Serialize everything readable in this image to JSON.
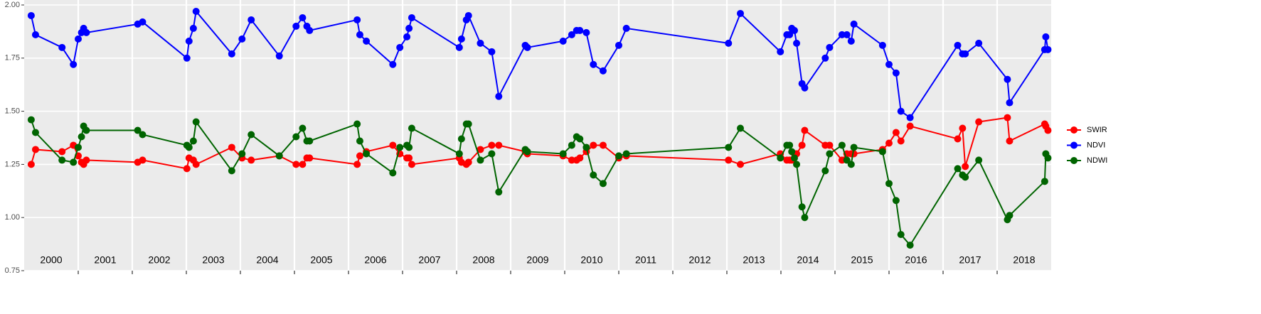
{
  "chart_data": {
    "type": "line",
    "x": [
      2000.13,
      2000.21,
      2000.7,
      2000.91,
      2001.0,
      2001.06,
      2001.1,
      2001.15,
      2002.1,
      2002.19,
      2003.01,
      2003.05,
      2003.13,
      2003.18,
      2003.84,
      2004.03,
      2004.2,
      2004.72,
      2005.03,
      2005.15,
      2005.23,
      2005.28,
      2006.16,
      2006.21,
      2006.33,
      2006.82,
      2006.95,
      2007.08,
      2007.12,
      2007.17,
      2008.05,
      2008.09,
      2008.18,
      2008.22,
      2008.44,
      2008.65,
      2008.78,
      2009.27,
      2009.31,
      2009.97,
      2010.13,
      2010.22,
      2010.28,
      2010.4,
      2010.53,
      2010.71,
      2011.0,
      2011.14,
      2013.03,
      2013.25,
      2013.99,
      2014.11,
      2014.16,
      2014.2,
      2014.25,
      2014.29,
      2014.39,
      2014.44,
      2014.82,
      2014.9,
      2015.13,
      2015.22,
      2015.3,
      2015.35,
      2015.88,
      2016.0,
      2016.13,
      2016.22,
      2016.39,
      2017.27,
      2017.36,
      2017.41,
      2017.66,
      2018.19,
      2018.23,
      2018.88,
      2018.9,
      2018.94
    ],
    "series": [
      {
        "name": "SWIR",
        "color": "#ff0000",
        "values": [
          1.25,
          1.32,
          1.31,
          1.34,
          1.29,
          1.26,
          1.25,
          1.27,
          1.26,
          1.27,
          1.23,
          1.28,
          1.27,
          1.25,
          1.33,
          1.28,
          1.27,
          1.29,
          1.25,
          1.25,
          1.28,
          1.28,
          1.25,
          1.29,
          1.31,
          1.34,
          1.3,
          1.28,
          1.28,
          1.25,
          1.28,
          1.26,
          1.25,
          1.26,
          1.32,
          1.34,
          1.34,
          1.31,
          1.3,
          1.29,
          1.27,
          1.27,
          1.28,
          1.31,
          1.34,
          1.34,
          1.28,
          1.29,
          1.27,
          1.25,
          1.3,
          1.27,
          1.27,
          1.27,
          1.3,
          1.3,
          1.34,
          1.41,
          1.34,
          1.34,
          1.27,
          1.3,
          1.3,
          1.3,
          1.32,
          1.35,
          1.4,
          1.36,
          1.43,
          1.37,
          1.42,
          1.24,
          1.45,
          1.47,
          1.36,
          1.44,
          1.43,
          1.41
        ]
      },
      {
        "name": "NDVI",
        "color": "#0000ff",
        "values": [
          1.95,
          1.86,
          1.8,
          1.72,
          1.84,
          1.87,
          1.89,
          1.87,
          1.91,
          1.92,
          1.75,
          1.83,
          1.89,
          1.97,
          1.77,
          1.84,
          1.93,
          1.76,
          1.9,
          1.94,
          1.9,
          1.88,
          1.93,
          1.86,
          1.83,
          1.72,
          1.8,
          1.85,
          1.89,
          1.94,
          1.8,
          1.84,
          1.93,
          1.95,
          1.82,
          1.78,
          1.57,
          1.81,
          1.8,
          1.83,
          1.86,
          1.88,
          1.88,
          1.87,
          1.72,
          1.69,
          1.81,
          1.89,
          1.82,
          1.96,
          1.78,
          1.86,
          1.86,
          1.89,
          1.88,
          1.82,
          1.63,
          1.61,
          1.75,
          1.8,
          1.86,
          1.86,
          1.83,
          1.91,
          1.81,
          1.72,
          1.68,
          1.5,
          1.47,
          1.81,
          1.77,
          1.77,
          1.82,
          1.65,
          1.54,
          1.79,
          1.85,
          1.79
        ]
      },
      {
        "name": "NDWI",
        "color": "#006400",
        "values": [
          1.46,
          1.4,
          1.27,
          1.26,
          1.33,
          1.38,
          1.43,
          1.41,
          1.41,
          1.39,
          1.34,
          1.33,
          1.36,
          1.45,
          1.22,
          1.3,
          1.39,
          1.29,
          1.38,
          1.42,
          1.36,
          1.36,
          1.44,
          1.36,
          1.3,
          1.21,
          1.33,
          1.34,
          1.33,
          1.42,
          1.3,
          1.37,
          1.44,
          1.44,
          1.27,
          1.3,
          1.12,
          1.32,
          1.31,
          1.3,
          1.34,
          1.38,
          1.37,
          1.33,
          1.2,
          1.16,
          1.29,
          1.3,
          1.33,
          1.42,
          1.28,
          1.34,
          1.34,
          1.31,
          1.28,
          1.25,
          1.05,
          1.0,
          1.22,
          1.3,
          1.34,
          1.27,
          1.25,
          1.33,
          1.31,
          1.16,
          1.08,
          0.92,
          0.87,
          1.23,
          1.2,
          1.19,
          1.27,
          0.99,
          1.01,
          1.17,
          1.3,
          1.28
        ]
      }
    ],
    "categories": [
      "2000",
      "2001",
      "2002",
      "2003",
      "2004",
      "2005",
      "2006",
      "2007",
      "2008",
      "2009",
      "2010",
      "2011",
      "2012",
      "2013",
      "2014",
      "2015",
      "2016",
      "2017",
      "2018"
    ],
    "xlim": [
      2000,
      2019
    ],
    "xticks": [
      2001,
      2002,
      2003,
      2004,
      2005,
      2006,
      2007,
      2008,
      2009,
      2010,
      2011,
      2012,
      2013,
      2014,
      2015,
      2016,
      2017,
      2018
    ],
    "ylim": [
      0.75,
      2.0
    ],
    "yticks": [
      0.75,
      {
        "value": 1.0,
        "label": "1.00"
      },
      1.25,
      {
        "value": 1.5,
        "label": "1.50"
      },
      1.75,
      {
        "value": 2.0,
        "label": "2.00"
      }
    ],
    "grid": true,
    "legend": "right"
  }
}
